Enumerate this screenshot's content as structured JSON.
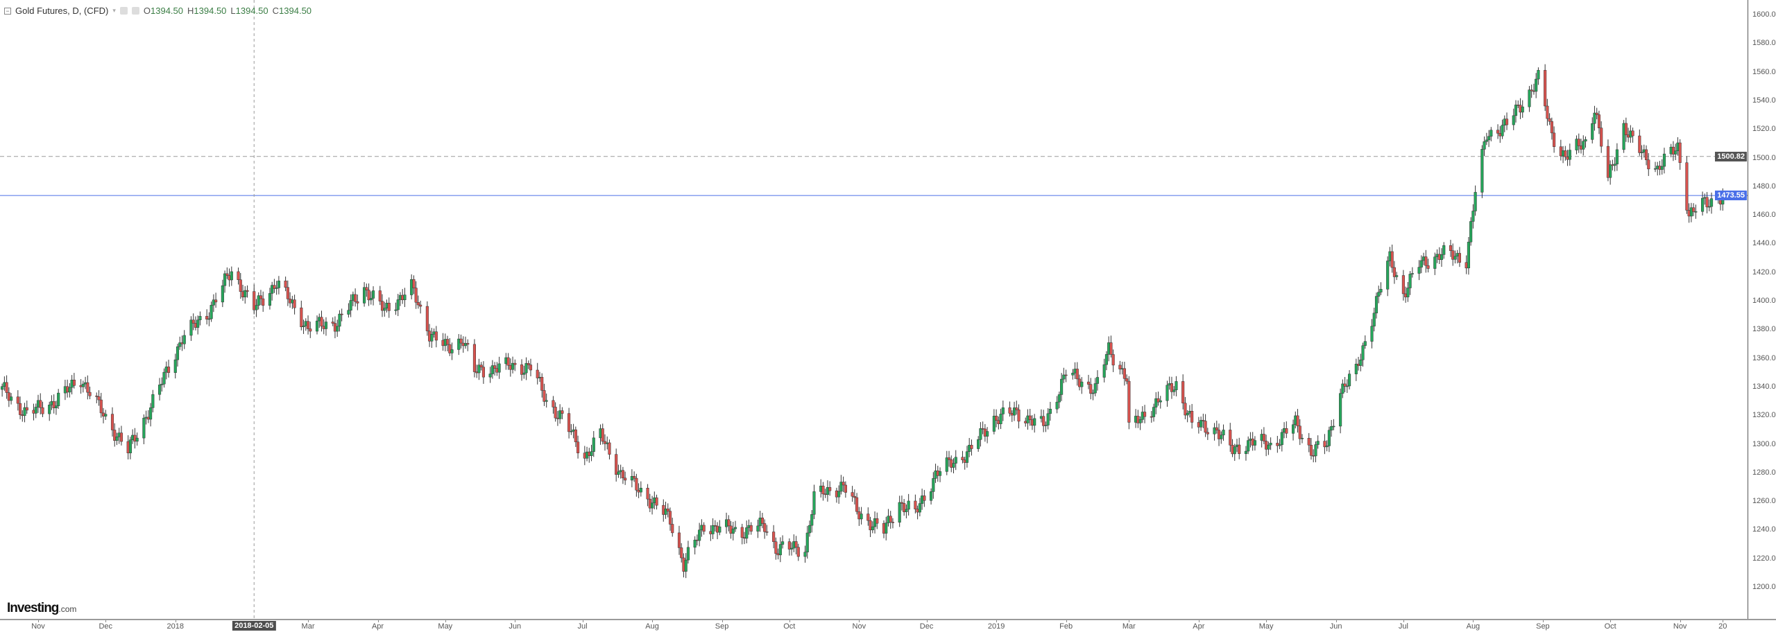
{
  "legend": {
    "title": "Gold Futures, D, (CFD)",
    "open_label": "O",
    "open": "1394.50",
    "high_label": "H",
    "high": "1394.50",
    "low_label": "L",
    "low": "1394.50",
    "close_label": "C",
    "close": "1394.50"
  },
  "logo": {
    "main": "Investing",
    "suffix": ".com"
  },
  "colors": {
    "up": "#26a65b",
    "down": "#d9534f",
    "outline": "#333333",
    "last_price": "#4a6fe8",
    "crosshair_tag": "#4d4d4d"
  },
  "chart_data": {
    "type": "candlestick",
    "interval": "D",
    "ylim": [
      1190,
      1610
    ],
    "y_ticks": [
      "1200.00",
      "1220.00",
      "1240.00",
      "1260.00",
      "1280.00",
      "1300.00",
      "1320.00",
      "1340.00",
      "1360.00",
      "1380.00",
      "1400.00",
      "1420.00",
      "1440.00",
      "1460.00",
      "1480.00",
      "1500.00",
      "1520.00",
      "1540.00",
      "1560.00",
      "1580.00",
      "1600.00"
    ],
    "x_ticks": [
      {
        "date": "2017-11-01",
        "label": "Nov"
      },
      {
        "date": "2017-12-01",
        "label": "Dec"
      },
      {
        "date": "2018-01-01",
        "label": "2018"
      },
      {
        "date": "2018-03-01",
        "label": "Mar"
      },
      {
        "date": "2018-04-01",
        "label": "Apr"
      },
      {
        "date": "2018-05-01",
        "label": "May"
      },
      {
        "date": "2018-06-01",
        "label": "Jun"
      },
      {
        "date": "2018-07-01",
        "label": "Jul"
      },
      {
        "date": "2018-08-01",
        "label": "Aug"
      },
      {
        "date": "2018-09-01",
        "label": "Sep"
      },
      {
        "date": "2018-10-01",
        "label": "Oct"
      },
      {
        "date": "2018-11-01",
        "label": "Nov"
      },
      {
        "date": "2018-12-01",
        "label": "Dec"
      },
      {
        "date": "2019-01-01",
        "label": "2019"
      },
      {
        "date": "2019-02-01",
        "label": "Feb"
      },
      {
        "date": "2019-03-01",
        "label": "Mar"
      },
      {
        "date": "2019-04-01",
        "label": "Apr"
      },
      {
        "date": "2019-05-01",
        "label": "May"
      },
      {
        "date": "2019-06-01",
        "label": "Jun"
      },
      {
        "date": "2019-07-01",
        "label": "Jul"
      },
      {
        "date": "2019-08-01",
        "label": "Aug"
      },
      {
        "date": "2019-09-01",
        "label": "Sep"
      },
      {
        "date": "2019-10-01",
        "label": "Oct"
      },
      {
        "date": "2019-11-01",
        "label": "Nov"
      },
      {
        "date": "2019-11-20",
        "label": "20"
      }
    ],
    "crosshair": {
      "date": "2018-02-05",
      "label": "2018-02-05"
    },
    "price_lines": [
      {
        "value": 1500.82,
        "label": "1500.82",
        "style": "dashed",
        "color": "#9a9a9a",
        "tag_color": "#555555"
      },
      {
        "value": 1473.55,
        "label": "1473.55",
        "style": "solid",
        "color": "#4a6fe8",
        "tag_color": "#4a6fe8"
      }
    ],
    "closes": [
      [
        "2017-10-16",
        1338
      ],
      [
        "2017-10-27",
        1321
      ],
      [
        "2017-11-09",
        1330
      ],
      [
        "2017-11-20",
        1346
      ],
      [
        "2017-12-01",
        1318
      ],
      [
        "2017-12-11",
        1295
      ],
      [
        "2017-12-21",
        1326
      ],
      [
        "2018-01-04",
        1374
      ],
      [
        "2018-01-16",
        1393
      ],
      [
        "2018-01-26",
        1421
      ],
      [
        "2018-02-05",
        1394.5
      ],
      [
        "2018-02-15",
        1413
      ],
      [
        "2018-03-01",
        1381
      ],
      [
        "2018-03-14",
        1385
      ],
      [
        "2018-03-26",
        1409
      ],
      [
        "2018-04-04",
        1393
      ],
      [
        "2018-04-16",
        1409
      ],
      [
        "2018-04-24",
        1378
      ],
      [
        "2018-05-02",
        1366
      ],
      [
        "2018-05-09",
        1374
      ],
      [
        "2018-05-14",
        1350
      ],
      [
        "2018-05-24",
        1354
      ],
      [
        "2018-06-08",
        1354
      ],
      [
        "2018-06-15",
        1330
      ],
      [
        "2018-06-22",
        1318
      ],
      [
        "2018-07-02",
        1291
      ],
      [
        "2018-07-09",
        1306
      ],
      [
        "2018-07-18",
        1279
      ],
      [
        "2018-07-30",
        1263
      ],
      [
        "2018-08-09",
        1247
      ],
      [
        "2018-08-15",
        1216
      ],
      [
        "2018-08-24",
        1243
      ],
      [
        "2018-09-10",
        1239
      ],
      [
        "2018-09-20",
        1243
      ],
      [
        "2018-09-25",
        1227
      ],
      [
        "2018-10-08",
        1227
      ],
      [
        "2018-10-12",
        1263
      ],
      [
        "2018-10-25",
        1271
      ],
      [
        "2018-11-01",
        1251
      ],
      [
        "2018-11-12",
        1239
      ],
      [
        "2018-11-19",
        1259
      ],
      [
        "2018-11-26",
        1251
      ],
      [
        "2018-12-05",
        1279
      ],
      [
        "2018-12-20",
        1295
      ],
      [
        "2018-12-31",
        1318
      ],
      [
        "2019-01-10",
        1322
      ],
      [
        "2019-01-22",
        1312
      ],
      [
        "2019-02-01",
        1350
      ],
      [
        "2019-02-14",
        1338
      ],
      [
        "2019-02-20",
        1366
      ],
      [
        "2019-02-28",
        1346
      ],
      [
        "2019-03-01",
        1310
      ],
      [
        "2019-03-14",
        1330
      ],
      [
        "2019-03-22",
        1342
      ],
      [
        "2019-03-29",
        1314
      ],
      [
        "2019-04-09",
        1310
      ],
      [
        "2019-04-16",
        1295
      ],
      [
        "2019-04-24",
        1302
      ],
      [
        "2019-05-03",
        1299
      ],
      [
        "2019-05-14",
        1314
      ],
      [
        "2019-05-21",
        1295
      ],
      [
        "2019-05-28",
        1299
      ],
      [
        "2019-06-03",
        1338
      ],
      [
        "2019-06-10",
        1350
      ],
      [
        "2019-06-20",
        1405
      ],
      [
        "2019-06-25",
        1429
      ],
      [
        "2019-07-01",
        1405
      ],
      [
        "2019-07-08",
        1425
      ],
      [
        "2019-07-18",
        1433
      ],
      [
        "2019-07-29",
        1429
      ],
      [
        "2019-08-02",
        1476
      ],
      [
        "2019-08-07",
        1516
      ],
      [
        "2019-08-16",
        1523
      ],
      [
        "2019-08-23",
        1539
      ],
      [
        "2019-08-30",
        1555
      ],
      [
        "2019-09-05",
        1516
      ],
      [
        "2019-09-11",
        1500
      ],
      [
        "2019-09-20",
        1512
      ],
      [
        "2019-09-24",
        1535
      ],
      [
        "2019-09-30",
        1484
      ],
      [
        "2019-10-07",
        1523
      ],
      [
        "2019-10-12",
        1508
      ],
      [
        "2019-10-22",
        1492
      ],
      [
        "2019-10-31",
        1508
      ],
      [
        "2019-11-05",
        1460
      ],
      [
        "2019-11-12",
        1468
      ],
      [
        "2019-11-20",
        1473.55
      ]
    ]
  }
}
